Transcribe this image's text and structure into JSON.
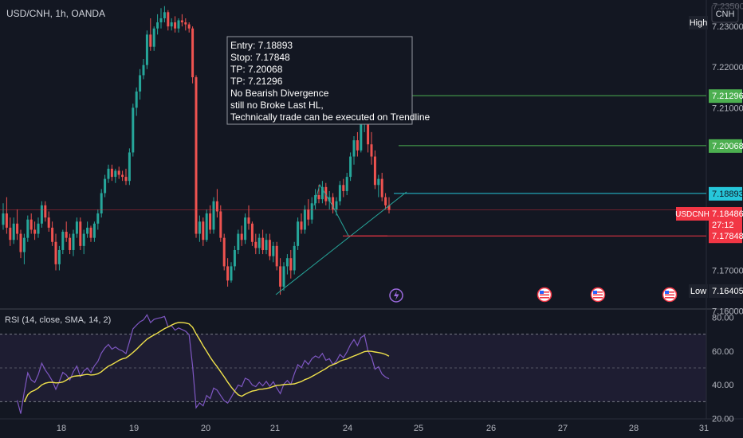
{
  "header": {
    "symbol_line": "USD/CNH, 1h, OANDA",
    "currency": "CNH",
    "high_badge": "High"
  },
  "annotation": {
    "lines": [
      "Entry: 7.18893",
      "Stop: 7.17848",
      "TP: 7.20068",
      "TP: 7.21296",
      "No Bearish Divergence",
      "still no Broke Last HL,",
      "Technically trade can be executed on Trendline"
    ]
  },
  "price_axis": {
    "ticks": [
      {
        "value": 7.23,
        "label": "7.23000"
      },
      {
        "value": 7.22,
        "label": "7.22000"
      },
      {
        "value": 7.21,
        "label": "7.21000"
      },
      {
        "value": 7.17,
        "label": "7.17000"
      },
      {
        "value": 7.16,
        "label": "7.16000"
      }
    ],
    "high_label": "7.23500",
    "low_badge": "Low",
    "low_label": "7.16405"
  },
  "levels": [
    {
      "name": "tp2",
      "value": 7.21296,
      "label": "7.21296",
      "color": "#4caf50"
    },
    {
      "name": "tp1",
      "value": 7.20068,
      "label": "7.20068",
      "color": "#4caf50"
    },
    {
      "name": "entry",
      "value": 7.18893,
      "label": "7.18893",
      "color": "#26c6da"
    },
    {
      "name": "stop",
      "value": 7.17848,
      "label": "7.17848",
      "color": "#f23645"
    }
  ],
  "current_price": {
    "symbol": "USDCNH",
    "value": 7.18486,
    "label": "7.18486",
    "countdown": "27:12",
    "color": "#f23645"
  },
  "rsi": {
    "title": "RSI (14, close, SMA, 14, 2)",
    "ticks": [
      {
        "value": 80,
        "label": "80.00"
      },
      {
        "value": 60,
        "label": "60.00"
      },
      {
        "value": 40,
        "label": "40.00"
      },
      {
        "value": 20,
        "label": "20.00"
      }
    ],
    "bands": {
      "upper": 70,
      "middle": 50,
      "lower": 30
    },
    "rsi_color": "#7e57c2",
    "ma_color": "#f0e24b"
  },
  "time_axis": {
    "labels": [
      "18",
      "19",
      "20",
      "21",
      "24",
      "25",
      "26",
      "27",
      "28",
      "31"
    ]
  },
  "event_icons": [
    "lightning-icon",
    "us-flag-icon",
    "us-flag-icon",
    "us-flag-icon"
  ],
  "colors": {
    "up": "#26a69a",
    "down": "#ef5350",
    "background": "#131722"
  },
  "chart_data": {
    "type": "candlestick",
    "title": "USD/CNH, 1h, OANDA",
    "ylim": [
      7.1605,
      7.2365
    ],
    "candles": [
      [
        7.1812,
        7.1865,
        7.18,
        7.184
      ],
      [
        7.184,
        7.188,
        7.179,
        7.1805
      ],
      [
        7.1805,
        7.183,
        7.176,
        7.1775
      ],
      [
        7.1775,
        7.183,
        7.1765,
        7.1815
      ],
      [
        7.1815,
        7.185,
        7.1775,
        7.179
      ],
      [
        7.179,
        7.18,
        7.173,
        7.1745
      ],
      [
        7.1745,
        7.179,
        7.1715,
        7.178
      ],
      [
        7.178,
        7.1835,
        7.177,
        7.1825
      ],
      [
        7.1825,
        7.184,
        7.179,
        7.18
      ],
      [
        7.18,
        7.182,
        7.1775,
        7.179
      ],
      [
        7.179,
        7.183,
        7.178,
        7.1815
      ],
      [
        7.1815,
        7.187,
        7.1805,
        7.186
      ],
      [
        7.186,
        7.187,
        7.182,
        7.183
      ],
      [
        7.183,
        7.1845,
        7.1795,
        7.1805
      ],
      [
        7.1805,
        7.182,
        7.176,
        7.177
      ],
      [
        7.177,
        7.179,
        7.17,
        7.1715
      ],
      [
        7.1715,
        7.176,
        7.17,
        7.175
      ],
      [
        7.175,
        7.18,
        7.174,
        7.1795
      ],
      [
        7.1795,
        7.182,
        7.177,
        7.178
      ],
      [
        7.178,
        7.179,
        7.174,
        7.175
      ],
      [
        7.175,
        7.18,
        7.1735,
        7.179
      ],
      [
        7.179,
        7.183,
        7.178,
        7.182
      ],
      [
        7.182,
        7.183,
        7.175,
        7.176
      ],
      [
        7.176,
        7.18,
        7.174,
        7.179
      ],
      [
        7.179,
        7.182,
        7.178,
        7.1805
      ],
      [
        7.1805,
        7.181,
        7.177,
        7.178
      ],
      [
        7.178,
        7.182,
        7.177,
        7.1815
      ],
      [
        7.1815,
        7.185,
        7.18,
        7.184
      ],
      [
        7.184,
        7.19,
        7.183,
        7.189
      ],
      [
        7.189,
        7.1935,
        7.188,
        7.1925
      ],
      [
        7.1925,
        7.196,
        7.1915,
        7.195
      ],
      [
        7.195,
        7.196,
        7.192,
        7.193
      ],
      [
        7.193,
        7.195,
        7.1915,
        7.1945
      ],
      [
        7.1945,
        7.1955,
        7.1925,
        7.1935
      ],
      [
        7.1935,
        7.1945,
        7.192,
        7.193
      ],
      [
        7.193,
        7.195,
        7.191,
        7.192
      ],
      [
        7.192,
        7.2,
        7.191,
        7.199
      ],
      [
        7.199,
        7.211,
        7.198,
        7.21
      ],
      [
        7.21,
        7.215,
        7.208,
        7.214
      ],
      [
        7.214,
        7.2195,
        7.212,
        7.218
      ],
      [
        7.218,
        7.222,
        7.217,
        7.2205
      ],
      [
        7.2205,
        7.229,
        7.2195,
        7.228
      ],
      [
        7.228,
        7.232,
        7.224,
        7.225
      ],
      [
        7.225,
        7.23,
        7.224,
        7.2295
      ],
      [
        7.2295,
        7.233,
        7.228,
        7.231
      ],
      [
        7.231,
        7.2345,
        7.2295,
        7.232
      ],
      [
        7.232,
        7.235,
        7.231,
        7.2335
      ],
      [
        7.2335,
        7.234,
        7.229,
        7.23
      ],
      [
        7.23,
        7.232,
        7.229,
        7.231
      ],
      [
        7.231,
        7.2325,
        7.2285,
        7.2295
      ],
      [
        7.2295,
        7.232,
        7.2285,
        7.2315
      ],
      [
        7.2315,
        7.233,
        7.23,
        7.231
      ],
      [
        7.231,
        7.232,
        7.229,
        7.2305
      ],
      [
        7.2305,
        7.231,
        7.2285,
        7.2295
      ],
      [
        7.2295,
        7.23,
        7.216,
        7.2175
      ],
      [
        7.2175,
        7.218,
        7.178,
        7.179
      ],
      [
        7.179,
        7.1835,
        7.177,
        7.182
      ],
      [
        7.182,
        7.183,
        7.176,
        7.1775
      ],
      [
        7.1775,
        7.185,
        7.177,
        7.184
      ],
      [
        7.184,
        7.186,
        7.179,
        7.18
      ],
      [
        7.18,
        7.188,
        7.179,
        7.187
      ],
      [
        7.187,
        7.19,
        7.183,
        7.1845
      ],
      [
        7.1845,
        7.186,
        7.177,
        7.178
      ],
      [
        7.178,
        7.179,
        7.17,
        7.171
      ],
      [
        7.171,
        7.173,
        7.166,
        7.1675
      ],
      [
        7.1675,
        7.172,
        7.167,
        7.171
      ],
      [
        7.171,
        7.176,
        7.17,
        7.175
      ],
      [
        7.175,
        7.18,
        7.174,
        7.179
      ],
      [
        7.179,
        7.181,
        7.176,
        7.1775
      ],
      [
        7.1775,
        7.184,
        7.1765,
        7.183
      ],
      [
        7.183,
        7.186,
        7.18,
        7.1815
      ],
      [
        7.1815,
        7.182,
        7.176,
        7.177
      ],
      [
        7.177,
        7.179,
        7.174,
        7.1755
      ],
      [
        7.1755,
        7.179,
        7.174,
        7.178
      ],
      [
        7.178,
        7.18,
        7.174,
        7.175
      ],
      [
        7.175,
        7.179,
        7.174,
        7.1775
      ],
      [
        7.1775,
        7.179,
        7.1725,
        7.1735
      ],
      [
        7.1735,
        7.177,
        7.172,
        7.176
      ],
      [
        7.176,
        7.177,
        7.17,
        7.171
      ],
      [
        7.171,
        7.173,
        7.164,
        7.166
      ],
      [
        7.166,
        7.172,
        7.165,
        7.171
      ],
      [
        7.171,
        7.174,
        7.169,
        7.173
      ],
      [
        7.173,
        7.175,
        7.168,
        7.17
      ],
      [
        7.17,
        7.177,
        7.169,
        7.176
      ],
      [
        7.176,
        7.183,
        7.175,
        7.182
      ],
      [
        7.182,
        7.184,
        7.179,
        7.18
      ],
      [
        7.18,
        7.186,
        7.179,
        7.185
      ],
      [
        7.185,
        7.1875,
        7.181,
        7.1825
      ],
      [
        7.1825,
        7.188,
        7.1815,
        7.1865
      ],
      [
        7.1865,
        7.19,
        7.185,
        7.1885
      ],
      [
        7.1885,
        7.191,
        7.1865,
        7.1875
      ],
      [
        7.1875,
        7.192,
        7.1865,
        7.1905
      ],
      [
        7.1905,
        7.1915,
        7.186,
        7.187
      ],
      [
        7.187,
        7.1895,
        7.185,
        7.188
      ],
      [
        7.188,
        7.189,
        7.184,
        7.185
      ],
      [
        7.185,
        7.188,
        7.1835,
        7.187
      ],
      [
        7.187,
        7.192,
        7.186,
        7.191
      ],
      [
        7.191,
        7.1925,
        7.188,
        7.1895
      ],
      [
        7.1895,
        7.194,
        7.1885,
        7.193
      ],
      [
        7.193,
        7.199,
        7.192,
        7.198
      ],
      [
        7.198,
        7.203,
        7.196,
        7.202
      ],
      [
        7.202,
        7.204,
        7.198,
        7.1995
      ],
      [
        7.1995,
        7.207,
        7.199,
        7.206
      ],
      [
        7.206,
        7.211,
        7.204,
        7.208
      ],
      [
        7.208,
        7.209,
        7.199,
        7.201
      ],
      [
        7.201,
        7.204,
        7.196,
        7.198
      ],
      [
        7.198,
        7.1995,
        7.19,
        7.191
      ],
      [
        7.191,
        7.1935,
        7.188,
        7.1925
      ],
      [
        7.1925,
        7.194,
        7.187,
        7.188
      ],
      [
        7.188,
        7.189,
        7.185,
        7.186
      ],
      [
        7.186,
        7.188,
        7.184,
        7.1849
      ]
    ]
  }
}
